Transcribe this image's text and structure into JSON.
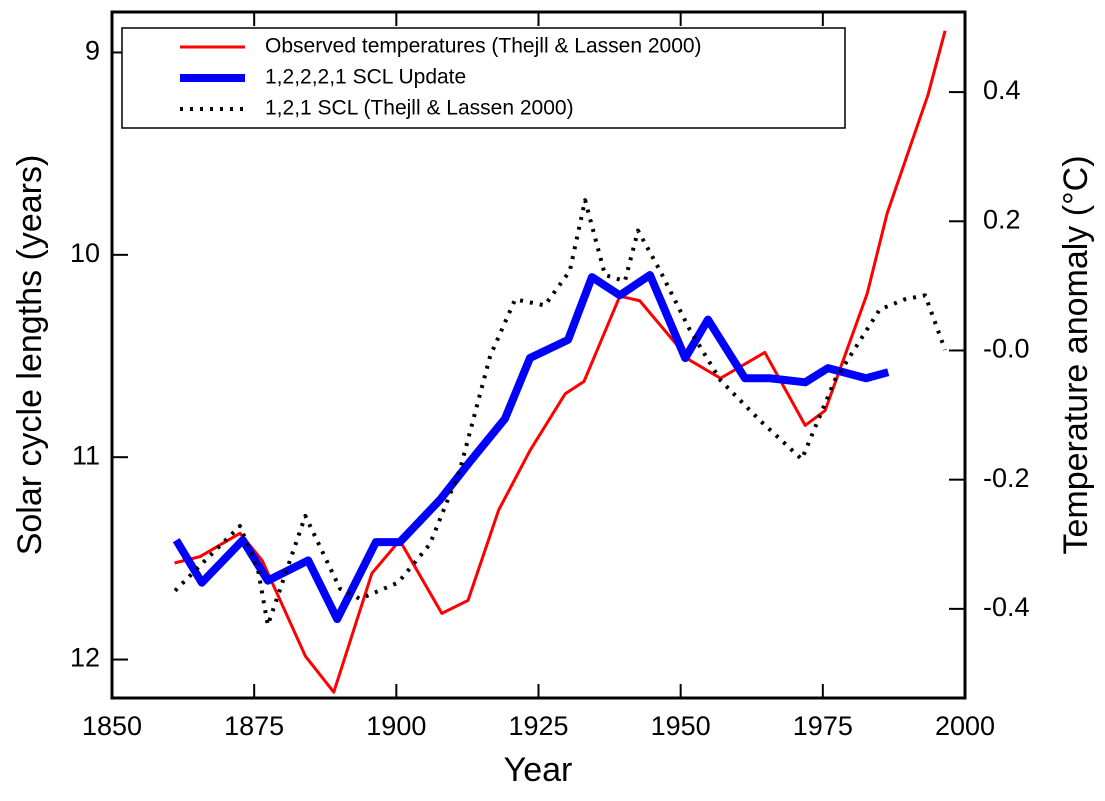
{
  "chart_data": {
    "type": "line",
    "x_label": "Year",
    "y_label": "Solar cycle lengths (years)",
    "y2_label": "Temperature anomaly  (°C)",
    "xlim": [
      1850,
      2000
    ],
    "xticks": [
      1850,
      1875,
      1900,
      1925,
      1950,
      1975,
      2000
    ],
    "ylim": [
      12.19,
      8.8
    ],
    "yticks": [
      9,
      10,
      11,
      12
    ],
    "y2lim": [
      -0.538,
      0.524
    ],
    "y2ticks": [
      0.4,
      0.2,
      {
        "value": 0,
        "label": "-0.0"
      },
      -0.2,
      -0.4
    ],
    "legend": "upper left",
    "series": [
      {
        "name": "Observed temperatures (Thejll & Lassen 2000)",
        "color": "#ff0000",
        "style": "solid",
        "width": 3,
        "axis": "y2",
        "x": [
          1861,
          1865.5,
          1872.5,
          1876.4,
          1884,
          1889,
          1895.7,
          1900.6,
          1908,
          1912.6,
          1918,
          1923.5,
          1929.7,
          1933,
          1939.3,
          1942.8,
          1951.6,
          1957,
          1964.8,
          1971.9,
          1975.4,
          1982.8,
          1986.3,
          1993.5,
          1996.5
        ],
        "values": [
          -0.329,
          -0.319,
          -0.283,
          -0.325,
          -0.473,
          -0.529,
          -0.345,
          -0.294,
          -0.407,
          -0.387,
          -0.247,
          -0.155,
          -0.067,
          -0.048,
          0.084,
          0.077,
          -0.015,
          -0.043,
          -0.003,
          -0.116,
          -0.093,
          0.088,
          0.212,
          0.396,
          0.495
        ]
      },
      {
        "name": "1,2,2,2,1 SCL Update",
        "color": "#0000ff",
        "style": "solid",
        "width": 8,
        "x": [
          1861.3,
          1865.8,
          1873,
          1877.4,
          1884.5,
          1889.6,
          1896.4,
          1900.6,
          1907.7,
          1913,
          1919.1,
          1923.5,
          1930.2,
          1934.4,
          1939.3,
          1944.6,
          1950.8,
          1954.8,
          1961.3,
          1965.7,
          1971.9,
          1975.9,
          1982.6,
          1986.5
        ],
        "values": [
          11.41,
          11.62,
          11.41,
          11.61,
          11.51,
          11.8,
          11.42,
          11.42,
          11.21,
          11.02,
          10.81,
          10.51,
          10.42,
          10.11,
          10.2,
          10.1,
          10.51,
          10.32,
          10.61,
          10.61,
          10.63,
          10.56,
          10.61,
          10.58
        ]
      },
      {
        "name": "1,2,1 SCL (Thejll & Lassen 2000)",
        "color": "#000000",
        "style": "dotted",
        "width": 4,
        "x": [
          1861.1,
          1866.4,
          1872.5,
          1875.7,
          1877.4,
          1881.3,
          1884,
          1890.1,
          1893.6,
          1900.3,
          1905.9,
          1911.2,
          1916.5,
          1920.9,
          1926.1,
          1930.5,
          1933.2,
          1936.7,
          1940.2,
          1942.5,
          1946.4,
          1951.6,
          1957,
          1964,
          1971.3,
          1977.1,
          1985,
          1989.4,
          1993,
          1996.5
        ],
        "values": [
          11.66,
          11.51,
          11.34,
          11.56,
          11.83,
          11.51,
          11.29,
          11.65,
          11.7,
          11.62,
          11.43,
          11.06,
          10.5,
          10.22,
          10.25,
          10.08,
          9.73,
          10.1,
          10.13,
          9.88,
          10.08,
          10.37,
          10.62,
          10.82,
          11.01,
          10.62,
          10.27,
          10.22,
          10.2,
          10.47
        ]
      }
    ]
  }
}
